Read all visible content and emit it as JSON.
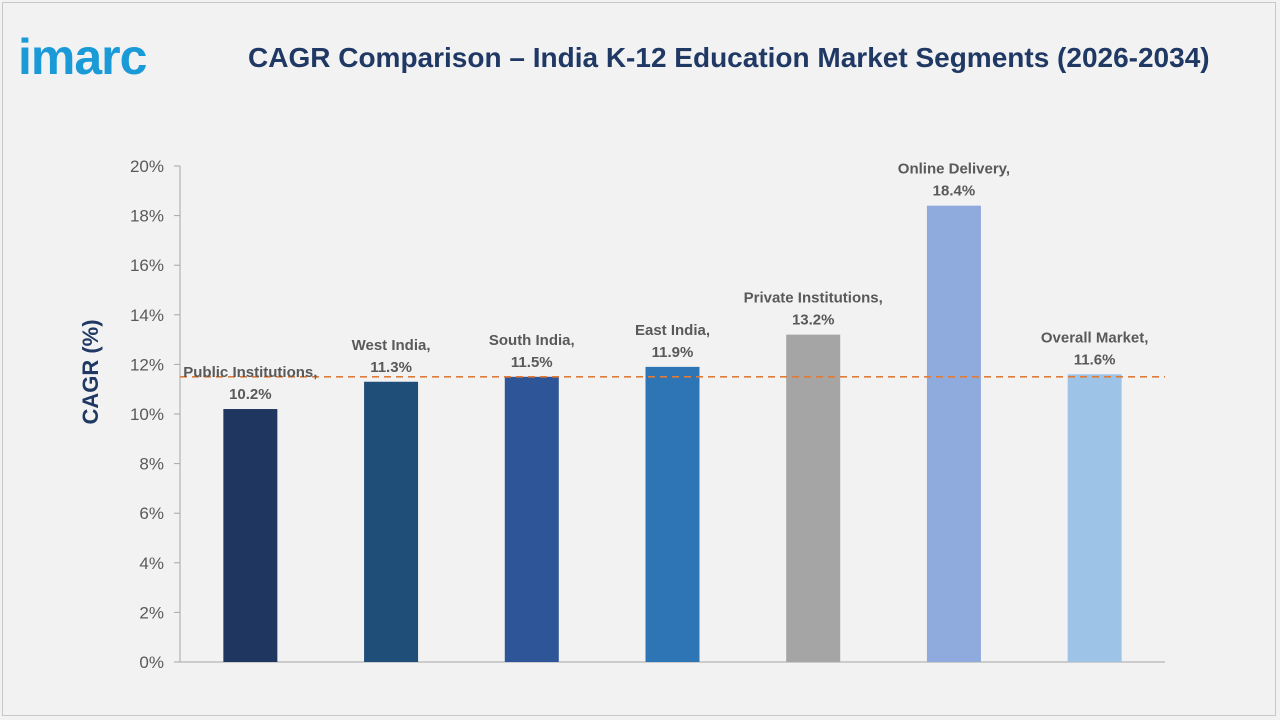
{
  "brand": {
    "name": "imarc",
    "color": "#1a9ad6"
  },
  "chart_data": {
    "type": "bar",
    "title": "CAGR Comparison – India K-12 Education Market Segments (2026-2034)",
    "ylabel": "CAGR (%)",
    "xlabel": "",
    "ylim": [
      0,
      20
    ],
    "yticks": [
      0,
      2,
      4,
      6,
      8,
      10,
      12,
      14,
      16,
      18,
      20
    ],
    "ytick_labels": [
      "0%",
      "2%",
      "4%",
      "6%",
      "8%",
      "10%",
      "12%",
      "14%",
      "16%",
      "18%",
      "20%"
    ],
    "categories": [
      "Public Institutions",
      "West India",
      "South India",
      "East India",
      "Private Institutions",
      "Online Delivery",
      "Overall Market"
    ],
    "values": [
      10.2,
      11.3,
      11.5,
      11.9,
      13.2,
      18.4,
      11.6
    ],
    "data_labels": [
      [
        "Public Institutions,",
        "10.2%"
      ],
      [
        "West India,",
        "11.3%"
      ],
      [
        "South India,",
        "11.5%"
      ],
      [
        "East India,",
        "11.9%"
      ],
      [
        "Private Institutions,",
        "13.2%"
      ],
      [
        "Online Delivery,",
        "18.4%"
      ],
      [
        "Overall Market,",
        "11.6%"
      ]
    ],
    "colors": [
      "#1f3660",
      "#1f4e79",
      "#2e5597",
      "#2e75b6",
      "#a5a5a5",
      "#8faadc",
      "#9dc3e6"
    ],
    "reference_line": {
      "value": 11.5,
      "style": "dashed",
      "color": "#e07b39"
    },
    "grid": false,
    "legend": "none"
  }
}
